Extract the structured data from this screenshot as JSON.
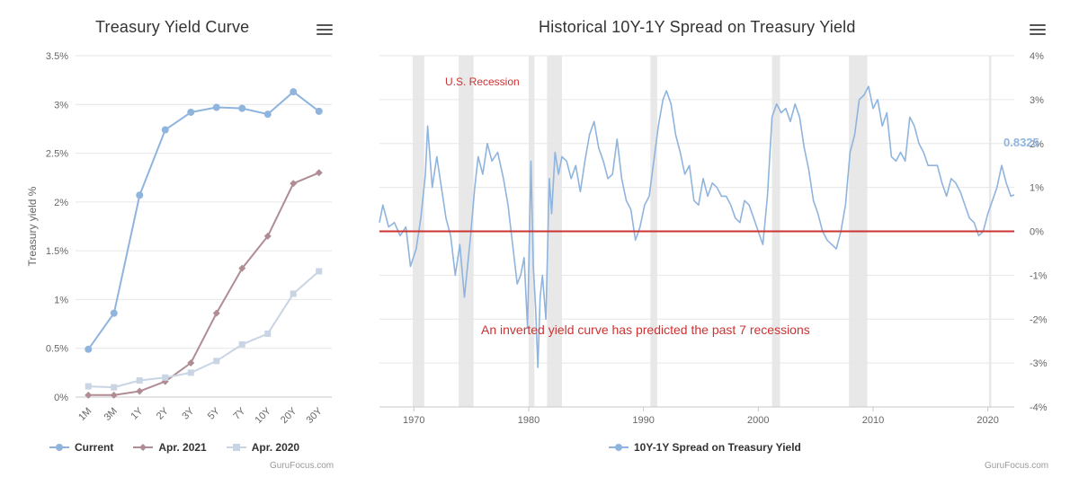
{
  "left": {
    "title": "Treasury Yield Curve",
    "credit": "GuruFocus.com",
    "menu_icon": "hamburger-menu-icon",
    "chart_data": {
      "type": "line",
      "title": "Treasury Yield Curve",
      "ylabel": "Treasury yield %",
      "xlabel": "",
      "categories": [
        "1M",
        "3M",
        "1Y",
        "2Y",
        "3Y",
        "5Y",
        "7Y",
        "10Y",
        "20Y",
        "30Y"
      ],
      "ylim": [
        0,
        3.5
      ],
      "yticks": [
        0,
        0.5,
        1,
        1.5,
        2,
        2.5,
        3,
        3.5
      ],
      "ytick_labels": [
        "0%",
        "0.5%",
        "1%",
        "1.5%",
        "2%",
        "2.5%",
        "3%",
        "3.5%"
      ],
      "legend_position": "bottom",
      "series": [
        {
          "name": "Current",
          "color": "#8fb4de",
          "marker": "circle",
          "values": [
            0.49,
            0.86,
            2.07,
            2.74,
            2.92,
            2.97,
            2.96,
            2.9,
            3.13,
            2.93
          ]
        },
        {
          "name": "Apr. 2021",
          "color": "#b08c94",
          "marker": "diamond",
          "values": [
            0.02,
            0.02,
            0.06,
            0.16,
            0.35,
            0.86,
            1.32,
            1.65,
            2.19,
            2.3
          ]
        },
        {
          "name": "Apr. 2020",
          "color": "#c9d4e4",
          "marker": "square",
          "values": [
            0.11,
            0.1,
            0.17,
            0.2,
            0.25,
            0.37,
            0.54,
            0.65,
            1.06,
            1.29
          ]
        }
      ]
    }
  },
  "right": {
    "title": "Historical 10Y-1Y Spread on Treasury Yield",
    "credit": "GuruFocus.com",
    "menu_icon": "hamburger-menu-icon",
    "chart_data": {
      "type": "line",
      "title": "Historical 10Y-1Y Spread on Treasury Yield",
      "xlabel": "",
      "ylabel": "",
      "xlim": [
        1967,
        2022.3
      ],
      "xticks": [
        1970,
        1980,
        1990,
        2000,
        2010,
        2020
      ],
      "ylim": [
        -4,
        4
      ],
      "yticks": [
        -4,
        -3,
        -2,
        -1,
        0,
        1,
        2,
        3,
        4
      ],
      "ytick_labels": [
        "-4%",
        "-3%",
        "-2%",
        "-1%",
        "0%",
        "1%",
        "2%",
        "3%",
        "4%"
      ],
      "zero_line_color": "#cc3333",
      "legend_position": "bottom",
      "last_value_label": "0.8325",
      "recession_label": "U.S. Recession",
      "annotation": "An inverted yield curve has predicted the past 7 recessions",
      "recessions": [
        [
          1969.9,
          1970.9
        ],
        [
          1973.9,
          1975.2
        ],
        [
          1980.0,
          1980.5
        ],
        [
          1981.6,
          1982.9
        ],
        [
          1990.6,
          1991.2
        ],
        [
          2001.2,
          2001.9
        ],
        [
          2007.9,
          2009.5
        ],
        [
          2020.1,
          2020.3
        ]
      ],
      "series": [
        {
          "name": "10Y-1Y Spread on Treasury Yield",
          "color": "#8fb4de",
          "x": [
            1967.0,
            1967.3,
            1967.8,
            1968.3,
            1968.8,
            1969.3,
            1969.7,
            1970.2,
            1970.6,
            1971.0,
            1971.2,
            1971.6,
            1972.0,
            1972.4,
            1972.8,
            1973.2,
            1973.6,
            1974.0,
            1974.4,
            1974.9,
            1975.3,
            1975.6,
            1976.0,
            1976.4,
            1976.8,
            1977.3,
            1977.8,
            1978.2,
            1978.6,
            1979.0,
            1979.3,
            1979.6,
            1979.9,
            1980.2,
            1980.4,
            1980.6,
            1980.8,
            1981.0,
            1981.2,
            1981.5,
            1981.8,
            1982.0,
            1982.3,
            1982.6,
            1982.9,
            1983.3,
            1983.7,
            1984.1,
            1984.5,
            1984.9,
            1985.3,
            1985.7,
            1986.1,
            1986.5,
            1986.9,
            1987.3,
            1987.7,
            1988.1,
            1988.5,
            1988.9,
            1989.3,
            1989.7,
            1990.1,
            1990.5,
            1990.9,
            1991.3,
            1991.7,
            1992.0,
            1992.4,
            1992.8,
            1993.2,
            1993.6,
            1994.0,
            1994.4,
            1994.8,
            1995.2,
            1995.6,
            1996.0,
            1996.4,
            1996.8,
            1997.2,
            1997.6,
            1998.0,
            1998.4,
            1998.8,
            1999.2,
            1999.6,
            2000.0,
            2000.4,
            2000.8,
            2001.2,
            2001.6,
            2002.0,
            2002.4,
            2002.8,
            2003.2,
            2003.6,
            2004.0,
            2004.4,
            2004.8,
            2005.2,
            2005.6,
            2006.0,
            2006.4,
            2006.8,
            2007.2,
            2007.6,
            2008.0,
            2008.4,
            2008.8,
            2009.2,
            2009.6,
            2010.0,
            2010.4,
            2010.8,
            2011.2,
            2011.6,
            2012.0,
            2012.4,
            2012.8,
            2013.2,
            2013.6,
            2014.0,
            2014.4,
            2014.8,
            2015.2,
            2015.6,
            2016.0,
            2016.4,
            2016.8,
            2017.2,
            2017.6,
            2018.0,
            2018.4,
            2018.8,
            2019.2,
            2019.6,
            2020.0,
            2020.4,
            2020.8,
            2021.2,
            2021.6,
            2022.0,
            2022.3
          ],
          "values": [
            0.2,
            0.6,
            0.1,
            0.2,
            -0.1,
            0.1,
            -0.8,
            -0.4,
            0.3,
            1.3,
            2.4,
            1.0,
            1.7,
            1.0,
            0.3,
            -0.1,
            -1.0,
            -0.3,
            -1.5,
            -0.2,
            1.0,
            1.7,
            1.3,
            2.0,
            1.6,
            1.8,
            1.2,
            0.6,
            -0.3,
            -1.2,
            -1.0,
            -0.6,
            -2.2,
            1.6,
            -0.8,
            -1.7,
            -3.1,
            -1.5,
            -1.0,
            -2.0,
            1.2,
            0.4,
            1.8,
            1.3,
            1.7,
            1.6,
            1.2,
            1.5,
            0.9,
            1.6,
            2.2,
            2.5,
            1.9,
            1.6,
            1.2,
            1.3,
            2.1,
            1.2,
            0.7,
            0.5,
            -0.2,
            0.1,
            0.6,
            0.8,
            1.6,
            2.4,
            3.0,
            3.2,
            2.9,
            2.2,
            1.8,
            1.3,
            1.5,
            0.7,
            0.6,
            1.2,
            0.8,
            1.1,
            1.0,
            0.8,
            0.8,
            0.6,
            0.3,
            0.2,
            0.7,
            0.6,
            0.3,
            0.0,
            -0.3,
            0.8,
            2.6,
            2.9,
            2.7,
            2.8,
            2.5,
            2.9,
            2.6,
            1.9,
            1.4,
            0.7,
            0.4,
            0.0,
            -0.2,
            -0.3,
            -0.4,
            0.0,
            0.6,
            1.8,
            2.2,
            3.0,
            3.1,
            3.3,
            2.8,
            3.0,
            2.4,
            2.7,
            1.7,
            1.6,
            1.8,
            1.6,
            2.6,
            2.4,
            2.0,
            1.8,
            1.5,
            1.5,
            1.5,
            1.1,
            0.8,
            1.2,
            1.1,
            0.9,
            0.6,
            0.3,
            0.2,
            -0.1,
            0.0,
            0.4,
            0.7,
            1.0,
            1.5,
            1.1,
            0.8,
            0.83
          ]
        }
      ]
    }
  }
}
